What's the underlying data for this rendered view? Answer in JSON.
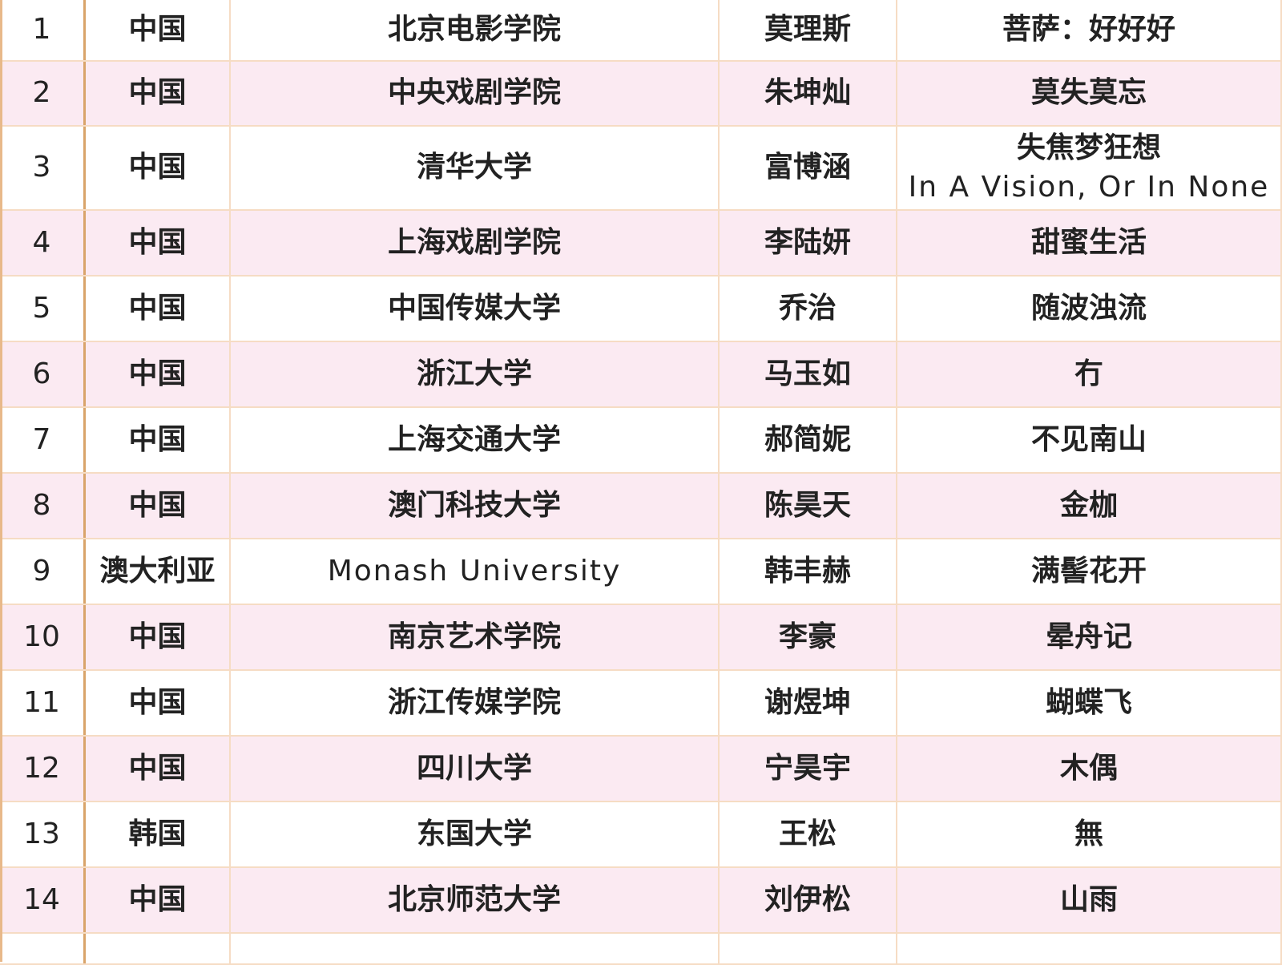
{
  "table": {
    "rows": [
      [
        1,
        "中国",
        "北京电影学院",
        "莫理斯",
        "菩萨：好好好"
      ],
      [
        2,
        "中国",
        "中央戏剧学院",
        "朱坤灿",
        "莫失莫忘"
      ],
      [
        3,
        "中国",
        "清华大学",
        "富博涵",
        [
          "失焦梦狂想",
          "In A Vision, Or In None"
        ]
      ],
      [
        4,
        "中国",
        "上海戏剧学院",
        "李陆妍",
        "甜蜜生活"
      ],
      [
        5,
        "中国",
        "中国传媒大学",
        "乔治",
        "随波浊流"
      ],
      [
        6,
        "中国",
        "浙江大学",
        "马玉如",
        "冇"
      ],
      [
        7,
        "中国",
        "上海交通大学",
        "郝简妮",
        "不见南山"
      ],
      [
        8,
        "中国",
        "澳门科技大学",
        "陈昊天",
        "金枷"
      ],
      [
        9,
        "澳大利亚",
        "Monash University",
        "韩丰赫",
        "满髻花开"
      ],
      [
        10,
        "中国",
        "南京艺术学院",
        "李豪",
        "晕舟记"
      ],
      [
        11,
        "中国",
        "浙江传媒学院",
        "谢煜坤",
        "蝴蝶飞"
      ],
      [
        12,
        "中国",
        "四川大学",
        "宁昊宇",
        "木偶"
      ],
      [
        13,
        "韩国",
        "东国大学",
        "王松",
        "無"
      ],
      [
        14,
        "中国",
        "北京师范大学",
        "刘伊松",
        "山雨"
      ]
    ]
  }
}
